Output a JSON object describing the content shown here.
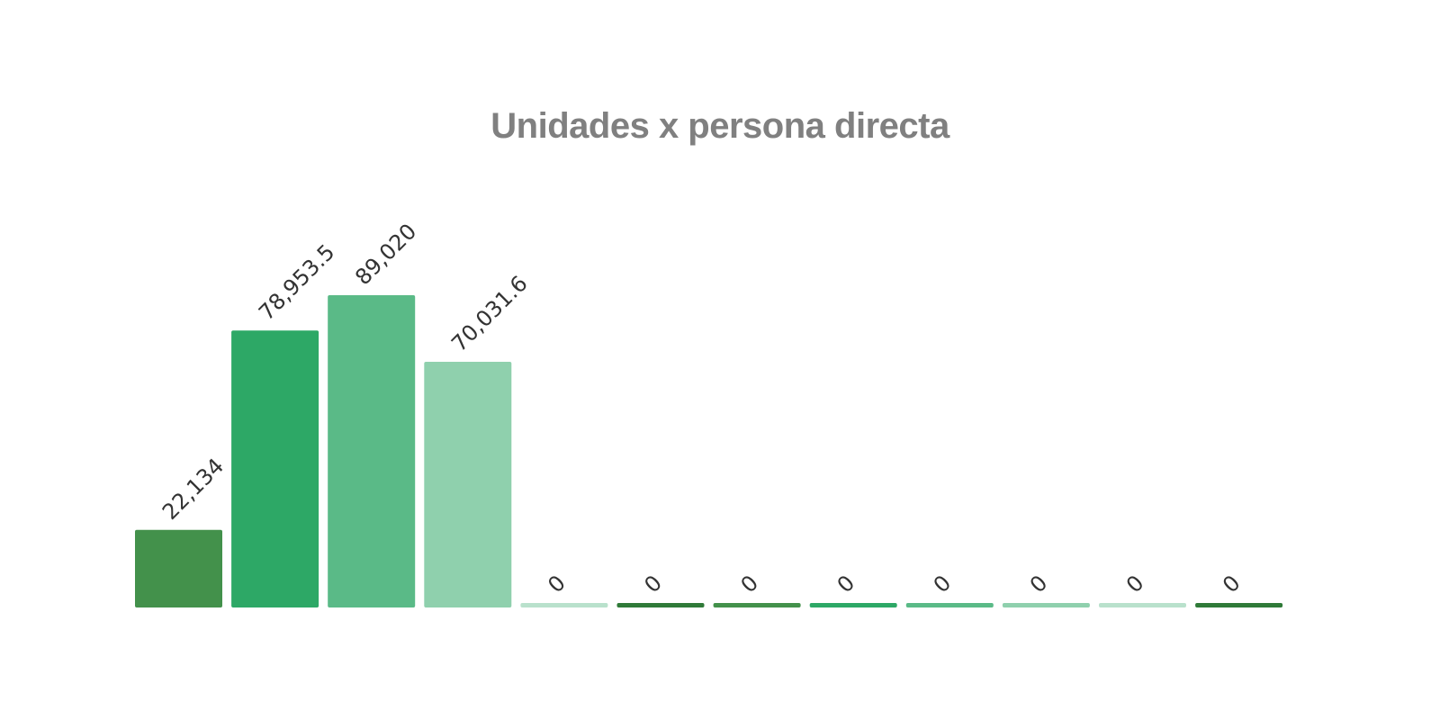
{
  "chart_data": {
    "type": "bar",
    "title": "Unidades x persona directa",
    "xlabel": "",
    "ylabel": "",
    "categories": [
      "",
      "",
      "",
      "",
      "",
      "",
      "",
      "",
      "",
      "",
      "",
      ""
    ],
    "values": [
      22134,
      78953.5,
      89020,
      70031.6,
      0,
      0,
      0,
      0,
      0,
      0,
      0,
      0
    ],
    "labels": [
      "22,134",
      "78,953.5",
      "89,020",
      "70,031.6",
      "0",
      "0",
      "0",
      "0",
      "0",
      "0",
      "0",
      "0"
    ],
    "colors": [
      "#43914b",
      "#2da866",
      "#5aba87",
      "#8fd0ad",
      "#b9e1cc",
      "#2f7a38",
      "#43914b",
      "#2da866",
      "#5aba87",
      "#8fd0ad",
      "#b9e1cc",
      "#2f7a38"
    ],
    "ylim": [
      0,
      89020
    ],
    "grid": false,
    "legend": "none"
  }
}
